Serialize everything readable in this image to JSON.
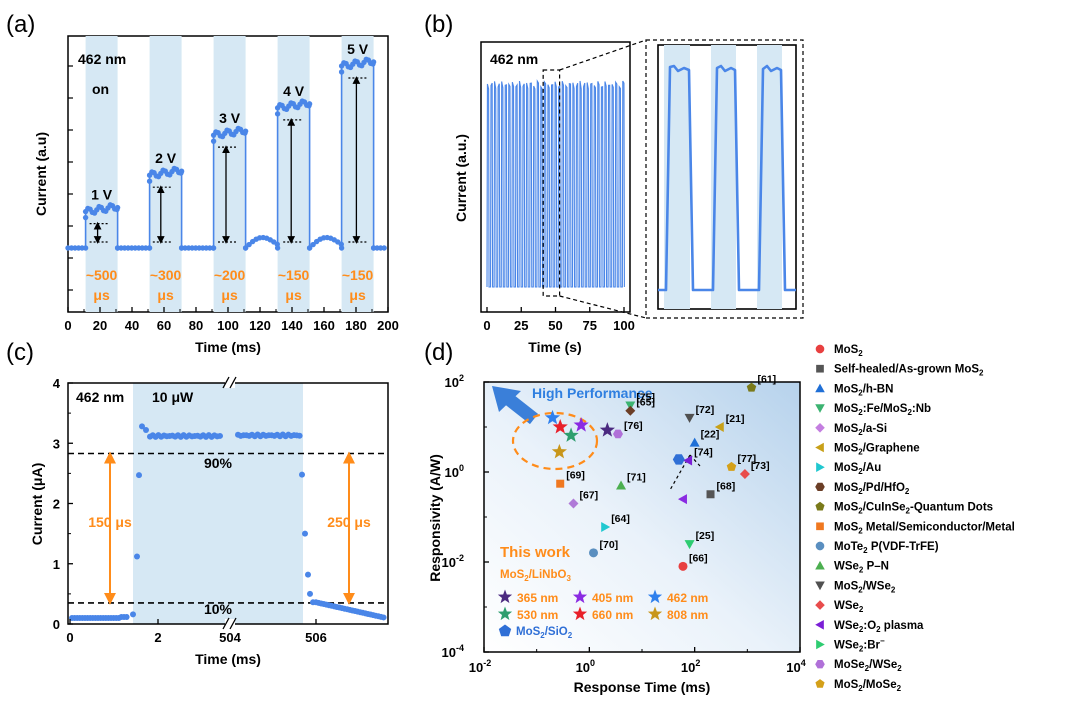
{
  "chart_data": [
    {
      "panel": "(a)",
      "type": "line",
      "xlabel": "Time (ms)",
      "ylabel": "Current (a.u)",
      "xlim": [
        0,
        200
      ],
      "xticks": [
        "0",
        "20",
        "40",
        "60",
        "80",
        "100",
        "120",
        "140",
        "160",
        "180",
        "200"
      ],
      "annotations": {
        "wavelength": "462 nm",
        "state": "on"
      },
      "colors": {
        "line": "#4a86e8",
        "band": "#d6e8f4",
        "orange": "#ff8c1a"
      },
      "pulses": [
        {
          "voltage": "1 V",
          "start": 11,
          "end": 31,
          "level": 0.2,
          "rise": "~500",
          "unit": "μs"
        },
        {
          "voltage": "2 V",
          "start": 51,
          "end": 71,
          "level": 0.4,
          "rise": "~300",
          "unit": "μs"
        },
        {
          "voltage": "3 V",
          "start": 91,
          "end": 111,
          "level": 0.62,
          "rise": "~200",
          "unit": "μs"
        },
        {
          "voltage": "4 V",
          "start": 131,
          "end": 151,
          "level": 0.77,
          "rise": "~150",
          "unit": "μs"
        },
        {
          "voltage": "5 V",
          "start": 171,
          "end": 191,
          "level": 1.0,
          "rise": "~150",
          "unit": "μs"
        }
      ]
    },
    {
      "panel": "(b)",
      "type": "line",
      "xlabel": "Time (s)",
      "ylabel": "Current (a.u.)",
      "xlim": [
        0,
        100
      ],
      "xticks": [
        "0",
        "25",
        "50",
        "75",
        "100"
      ],
      "annotations": {
        "wavelength": "462 nm"
      },
      "period_s": 2.6,
      "zoom_window_s": [
        41,
        53
      ],
      "colors": {
        "line": "#4a86e8",
        "band": "#d6e8f4"
      }
    },
    {
      "panel": "(c)",
      "type": "line",
      "xlabel": "Time (ms)",
      "ylabel": "Current (μA)",
      "ylim": [
        0,
        4
      ],
      "yticks": [
        "0",
        "1",
        "2",
        "3",
        "4"
      ],
      "xticks": [
        "0",
        "2",
        "504",
        "506"
      ],
      "annotations": {
        "wavelength": "462 nm",
        "power": "10 μW",
        "upper": "90%",
        "lower": "10%",
        "rise": "150 μs",
        "fall": "250 μs"
      },
      "levels": {
        "dark": 0.1,
        "on": 3.12,
        "p90": 2.83,
        "p10": 0.35
      },
      "colors": {
        "marker": "#4a86e8",
        "band": "#d6e8f4",
        "orange": "#ff8c1a"
      }
    },
    {
      "panel": "(d)",
      "type": "scatter",
      "xlabel": "Response Time (ms)",
      "ylabel": "Responsivity (A/W)",
      "xscale": "log",
      "yscale": "log",
      "xlim": [
        0.01,
        10000
      ],
      "ylim": [
        0.0001,
        100
      ],
      "xtick_values": [
        0.01,
        1,
        100,
        10000
      ],
      "ytick_values": [
        0.0001,
        0.01,
        1,
        100
      ],
      "xtick_base": [
        "10",
        "10",
        "10",
        "10"
      ],
      "xtick_exp": [
        "-2",
        "0",
        "2",
        "4"
      ],
      "ytick_base": [
        "10",
        "10",
        "10",
        "10"
      ],
      "ytick_exp": [
        "-4",
        "-2",
        "0",
        "2"
      ],
      "arrow_label": "High Performance",
      "this_work_title": "This work",
      "this_work_material": {
        "base": "MoS",
        "sub1": "2",
        "mid": "/LiNbO",
        "sub2": "3"
      },
      "this_work_points": [
        {
          "label": "365 nm",
          "color": "#4b2a80",
          "x": 2.2,
          "y": 8.5
        },
        {
          "label": "405 nm",
          "color": "#8a2be2",
          "x": 0.7,
          "y": 11
        },
        {
          "label": "462 nm",
          "color": "#2f80ed",
          "x": 0.2,
          "y": 16
        },
        {
          "label": "530 nm",
          "color": "#2e9e6e",
          "x": 0.45,
          "y": 6.5
        },
        {
          "label": "660 nm",
          "color": "#e8202a",
          "x": 0.28,
          "y": 10
        },
        {
          "label": "808 nm",
          "color": "#c8961a",
          "x": 0.27,
          "y": 2.8
        }
      ],
      "sio2_point": {
        "base": "MoS",
        "sub": "2",
        "rest": "/SiO",
        "sub2": "2",
        "color": "#2f6fd6",
        "x": 50,
        "y": 1.9
      },
      "refs": [
        {
          "ref": "[61]",
          "x": 1200,
          "y": 75,
          "marker": "pentagon",
          "color": "#7a7a1a"
        },
        {
          "ref": "[75]",
          "x": 6,
          "y": 30,
          "marker": "triangle-down",
          "color": "#3cb371"
        },
        {
          "ref": "[65]",
          "x": 6,
          "y": 23,
          "marker": "diamond",
          "color": "#6b3e26"
        },
        {
          "ref": "[76]",
          "x": 3.5,
          "y": 7,
          "marker": "hexagon",
          "color": "#b070d8"
        },
        {
          "ref": "[72]",
          "x": 80,
          "y": 16,
          "marker": "triangle-down",
          "color": "#505050"
        },
        {
          "ref": "[21]",
          "x": 300,
          "y": 10,
          "marker": "triangle-left",
          "color": "#c8a018"
        },
        {
          "ref": "[22]",
          "x": 100,
          "y": 4.5,
          "marker": "triangle-up",
          "color": "#1f6fd6"
        },
        {
          "ref": "[77]",
          "x": 500,
          "y": 1.3,
          "marker": "pentagon",
          "color": "#d4a019"
        },
        {
          "ref": "[73]",
          "x": 900,
          "y": 0.9,
          "marker": "diamond",
          "color": "#e84c4c"
        },
        {
          "ref": "[74]",
          "x": 75,
          "y": 1.8,
          "marker": "triangle-left",
          "color": "#7b1fd6"
        },
        {
          "ref": "[68]",
          "x": 200,
          "y": 0.32,
          "marker": "square",
          "color": "#555555"
        },
        {
          "ref": "[69]",
          "x": 0.28,
          "y": 0.55,
          "marker": "square",
          "color": "#f07820"
        },
        {
          "ref": "[67]",
          "x": 0.5,
          "y": 0.2,
          "marker": "diamond",
          "color": "#b07ad8"
        },
        {
          "ref": "[71]",
          "x": 4,
          "y": 0.5,
          "marker": "triangle-up",
          "color": "#4caf50"
        },
        {
          "ref": "[64]",
          "x": 2,
          "y": 0.06,
          "marker": "triangle-right",
          "color": "#20c8d0"
        },
        {
          "ref": "[70]",
          "x": 1.2,
          "y": 0.016,
          "marker": "circle",
          "color": "#5a8fc0"
        },
        {
          "ref": "[25]",
          "x": 80,
          "y": 0.025,
          "marker": "triangle-down",
          "color": "#2ecc71"
        },
        {
          "ref": "[66]",
          "x": 60,
          "y": 0.008,
          "marker": "circle",
          "color": "#e84040"
        }
      ],
      "extra_points": [
        {
          "x": 60,
          "y": 0.25,
          "marker": "triangle-left",
          "color": "#8a2be2"
        }
      ]
    }
  ],
  "legend": [
    {
      "marker": "circle",
      "color": "#e84040",
      "parts": [
        [
          "MoS",
          ""
        ],
        [
          "2",
          "sub"
        ]
      ]
    },
    {
      "marker": "square",
      "color": "#555555",
      "parts": [
        [
          "Self-healed/As-grown MoS",
          ""
        ],
        [
          "2",
          "sub"
        ]
      ]
    },
    {
      "marker": "triangle-up",
      "color": "#1f6fd6",
      "parts": [
        [
          "MoS",
          ""
        ],
        [
          "2",
          "sub"
        ],
        [
          "/h-BN",
          ""
        ]
      ]
    },
    {
      "marker": "triangle-down",
      "color": "#3cb371",
      "parts": [
        [
          "MoS",
          ""
        ],
        [
          "2",
          "sub"
        ],
        [
          ":Fe/MoS",
          ""
        ],
        [
          "2",
          "sub"
        ],
        [
          ":Nb",
          ""
        ]
      ]
    },
    {
      "marker": "diamond",
      "color": "#c47ee0",
      "parts": [
        [
          "MoS",
          ""
        ],
        [
          "2",
          "sub"
        ],
        [
          "/a-Si",
          ""
        ]
      ]
    },
    {
      "marker": "triangle-left",
      "color": "#c8a018",
      "parts": [
        [
          "MoS",
          ""
        ],
        [
          "2",
          "sub"
        ],
        [
          "/Graphene",
          ""
        ]
      ]
    },
    {
      "marker": "triangle-right",
      "color": "#20c8d0",
      "parts": [
        [
          "MoS",
          ""
        ],
        [
          "2",
          "sub"
        ],
        [
          "/Au",
          ""
        ]
      ]
    },
    {
      "marker": "hexagon",
      "color": "#6b3e26",
      "parts": [
        [
          "MoS",
          ""
        ],
        [
          "2",
          "sub"
        ],
        [
          "/Pd/HfO",
          ""
        ],
        [
          "2",
          "sub"
        ]
      ]
    },
    {
      "marker": "pentagon",
      "color": "#7a7a1a",
      "parts": [
        [
          "MoS",
          ""
        ],
        [
          "2",
          "sub"
        ],
        [
          "/CuInSe",
          ""
        ],
        [
          "2",
          "sub"
        ],
        [
          "-Quantum Dots",
          ""
        ]
      ]
    },
    {
      "marker": "square",
      "color": "#f07820",
      "parts": [
        [
          "MoS",
          ""
        ],
        [
          "2",
          "sub"
        ],
        [
          " Metal/Semiconductor/Metal",
          ""
        ]
      ]
    },
    {
      "marker": "circle",
      "color": "#5a8fc0",
      "parts": [
        [
          "MoTe",
          ""
        ],
        [
          "2",
          "sub"
        ],
        [
          " P(VDF-TrFE)",
          ""
        ]
      ]
    },
    {
      "marker": "triangle-up",
      "color": "#4caf50",
      "parts": [
        [
          "WSe",
          ""
        ],
        [
          "2",
          "sub"
        ],
        [
          " P–N",
          ""
        ]
      ]
    },
    {
      "marker": "triangle-down",
      "color": "#505050",
      "parts": [
        [
          "MoS",
          ""
        ],
        [
          "2",
          "sub"
        ],
        [
          "/WSe",
          ""
        ],
        [
          "2",
          "sub"
        ]
      ]
    },
    {
      "marker": "diamond",
      "color": "#e84c4c",
      "parts": [
        [
          "WSe",
          ""
        ],
        [
          "2",
          "sub"
        ]
      ]
    },
    {
      "marker": "triangle-left",
      "color": "#7b1fd6",
      "parts": [
        [
          "WSe",
          ""
        ],
        [
          "2",
          "sub"
        ],
        [
          ":O",
          ""
        ],
        [
          "2",
          "sub"
        ],
        [
          " plasma",
          ""
        ]
      ]
    },
    {
      "marker": "triangle-right",
      "color": "#2ecc71",
      "parts": [
        [
          "WSe",
          ""
        ],
        [
          "2",
          "sub"
        ],
        [
          ":Br",
          ""
        ],
        [
          "−",
          "sup"
        ]
      ]
    },
    {
      "marker": "hexagon",
      "color": "#b070d8",
      "parts": [
        [
          "MoSe",
          ""
        ],
        [
          "2",
          "sub"
        ],
        [
          "/WSe",
          ""
        ],
        [
          "2",
          "sub"
        ]
      ]
    },
    {
      "marker": "pentagon",
      "color": "#d4a019",
      "parts": [
        [
          "MoS",
          ""
        ],
        [
          "2",
          "sub"
        ],
        [
          "/MoSe",
          ""
        ],
        [
          "2",
          "sub"
        ]
      ]
    }
  ]
}
